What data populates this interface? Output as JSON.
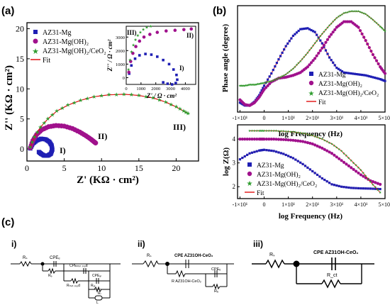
{
  "panel_labels": {
    "a": "(a)",
    "b": "(b)",
    "c": "(c)"
  },
  "legend_a": [
    "AZ31-Mg",
    "AZ31-Mg(OH)₂",
    "AZ31-Mg(OH)₂/CeO₂",
    "Fit"
  ],
  "legend_b": [
    "AZ31-Mg",
    "AZ31-Mg(OH)₂",
    "AZ31-Mg(OH)₂/CeO₂",
    "Fit"
  ],
  "legend_c": [
    "AZ31-Mg",
    "AZ31-Mg(OH)₂",
    "AZ31-Mg(OH)₂/CeO₂",
    "Fit"
  ],
  "colors": {
    "mg": "#1f1fb4",
    "oh": "#a0118c",
    "ce": "#2e9c2e",
    "fit": "#e01010",
    "axis": "#000000"
  },
  "chart_data": [
    {
      "type": "scatter",
      "xlabel": "Z' (KΩ · cm²)",
      "ylabel": "Z'' (KΩ · cm²)",
      "xlim": [
        0,
        23
      ],
      "ylim": [
        -2,
        21
      ],
      "xticks": [
        "0",
        "5",
        "10",
        "15",
        "20"
      ],
      "yticks": [
        "0",
        "5",
        "10",
        "15",
        "20"
      ],
      "annotations": [
        "I)",
        "II)",
        "III)"
      ],
      "series": [
        {
          "name": "AZ31-Mg",
          "x": [
            0.45,
            0.8,
            1.3,
            1.9,
            2.5,
            3.0,
            3.3,
            3.4,
            3.2,
            2.8,
            2.3,
            1.9,
            1.6
          ],
          "y": [
            0.1,
            0.9,
            1.4,
            1.7,
            1.6,
            1.2,
            0.6,
            -0.1,
            -0.8,
            -1.1,
            -1.1,
            -0.8,
            -0.5
          ]
        },
        {
          "name": "AZ31-Mg(OH)₂",
          "x": [
            0.45,
            0.8,
            1.3,
            2.0,
            2.9,
            3.9,
            5.0,
            6.1,
            7.1,
            7.9,
            8.6,
            9.0,
            9.2
          ],
          "y": [
            0.2,
            1.4,
            2.4,
            3.2,
            3.7,
            3.9,
            3.8,
            3.4,
            2.8,
            2.2,
            1.6,
            1.2,
            1.0
          ]
        },
        {
          "name": "AZ31-Mg(OH)₂/CeO₂",
          "x": [
            0.45,
            1.0,
            1.8,
            2.8,
            4.0,
            5.5,
            7.2,
            9.0,
            11.0,
            13.0,
            15.0,
            16.9,
            18.6,
            20.0,
            21.0,
            21.6
          ],
          "y": [
            0.3,
            2.0,
            3.6,
            5.0,
            6.3,
            7.3,
            8.1,
            8.7,
            9.0,
            9.1,
            8.9,
            8.5,
            7.8,
            7.0,
            6.3,
            5.9
          ]
        }
      ],
      "fit_label": "Fit"
    },
    {
      "type": "scatter",
      "inset": true,
      "xlabel": "Z' / Ω · cm²",
      "ylabel": "Z'' / Ω · cm²",
      "xlim": [
        0,
        4700
      ],
      "ylim": [
        -500,
        3800
      ],
      "xticks": [
        "0",
        "1000",
        "2000",
        "3000",
        "4000"
      ],
      "yticks": [
        "0",
        "1000",
        "2000",
        "3000"
      ],
      "annotations": [
        "I)",
        "II)",
        "III)"
      ],
      "series": [
        {
          "name": "AZ31-Mg",
          "x": [
            200,
            350,
            600,
            900,
            1300,
            1700,
            2100,
            2500,
            2900,
            3200,
            3400,
            3450,
            3350,
            3100,
            2800,
            2500
          ],
          "y": [
            300,
            900,
            1400,
            1650,
            1750,
            1700,
            1550,
            1300,
            1000,
            600,
            200,
            -150,
            -400,
            -500,
            -450,
            -350
          ]
        },
        {
          "name": "AZ31-Mg(OH)₂",
          "x": [
            180,
            300,
            450,
            650,
            900,
            1200,
            1600,
            2100,
            2700,
            3300,
            3900,
            4400
          ],
          "y": [
            400,
            1200,
            1800,
            2300,
            2700,
            3000,
            3200,
            3350,
            3450,
            3500,
            3550,
            3600
          ]
        },
        {
          "name": "AZ31-Mg(OH)₂/CeO₂",
          "x": [
            150,
            250,
            350,
            480,
            620,
            780,
            950,
            1150,
            1380,
            1650
          ],
          "y": [
            600,
            1300,
            1900,
            2400,
            2800,
            3100,
            3350,
            3550,
            3700,
            3800
          ]
        }
      ]
    },
    {
      "type": "line",
      "xlabel": "log Frequency (Hz)",
      "ylabel": "Phase angle (degree)",
      "xtick_labels": [
        "-1×10¹",
        "0",
        "1×10¹",
        "2×10¹",
        "3×10¹",
        "4×10¹",
        "5×10¹"
      ],
      "xlim": [
        -1.1,
        5.0
      ],
      "ylim": [
        -28,
        85
      ],
      "series": [
        {
          "name": "AZ31-Mg",
          "x": [
            -1.0,
            -0.8,
            -0.6,
            -0.4,
            -0.2,
            0.0,
            0.3,
            0.6,
            0.9,
            1.2,
            1.5,
            1.8,
            2.1,
            2.4,
            2.7,
            3.0,
            3.3,
            3.6,
            3.9,
            4.2,
            4.5,
            4.8,
            5.0
          ],
          "y": [
            -18,
            -21,
            -21,
            -17,
            -10,
            0,
            13,
            28,
            42,
            53,
            60,
            61,
            57,
            45,
            30,
            19,
            14,
            13,
            12,
            11,
            9,
            7,
            5
          ]
        },
        {
          "name": "AZ31-Mg(OH)₂",
          "x": [
            -1.0,
            -0.8,
            -0.6,
            -0.4,
            -0.2,
            0.0,
            0.3,
            0.6,
            0.9,
            1.2,
            1.5,
            1.8,
            2.1,
            2.4,
            2.7,
            3.0,
            3.3,
            3.6,
            3.9,
            4.2,
            4.5,
            4.8,
            5.0
          ],
          "y": [
            -15,
            -20,
            -21,
            -18,
            -12,
            -4,
            4,
            8,
            9,
            11,
            14,
            20,
            29,
            40,
            52,
            62,
            68,
            68,
            62,
            48,
            33,
            20,
            13
          ]
        },
        {
          "name": "AZ31-Mg(OH)₂/CeO₂",
          "x": [
            -1.0,
            -0.8,
            -0.6,
            -0.4,
            -0.2,
            0.0,
            0.3,
            0.6,
            0.9,
            1.2,
            1.5,
            1.8,
            2.1,
            2.4,
            2.7,
            3.0,
            3.3,
            3.6,
            3.9,
            4.2,
            4.5,
            4.8,
            5.0
          ],
          "y": [
            0,
            0,
            1,
            1,
            2,
            3,
            5,
            8,
            12,
            18,
            26,
            35,
            45,
            55,
            64,
            72,
            77,
            79,
            79,
            76,
            70,
            63,
            58
          ]
        }
      ],
      "fit_label": "Fit"
    },
    {
      "type": "line",
      "xlabel": "log Frequency (Hz)",
      "ylabel": "log Z(Ω)",
      "xtick_labels": [
        "-1×10¹",
        "0",
        "1×10¹",
        "2×10¹",
        "3×10¹",
        "4×10¹",
        "5×10¹"
      ],
      "yticks": [
        "2",
        "3",
        "4"
      ],
      "xlim": [
        -1.1,
        5.0
      ],
      "ylim": [
        1.5,
        4.6
      ],
      "series": [
        {
          "name": "AZ31-Mg",
          "x": [
            -1.0,
            -0.6,
            -0.2,
            0.0,
            0.4,
            0.8,
            1.2,
            1.6,
            2.0,
            2.4,
            2.8,
            3.2,
            3.6,
            4.0,
            4.4,
            4.8
          ],
          "y": [
            3.15,
            3.4,
            3.52,
            3.55,
            3.5,
            3.38,
            3.2,
            2.95,
            2.65,
            2.35,
            2.1,
            2.0,
            1.95,
            1.93,
            1.92,
            1.9
          ]
        },
        {
          "name": "AZ31-Mg(OH)₂",
          "x": [
            -1.0,
            -0.6,
            -0.2,
            0.0,
            0.4,
            0.8,
            1.2,
            1.6,
            2.0,
            2.4,
            2.8,
            3.2,
            3.6,
            4.0,
            4.4,
            4.8
          ],
          "y": [
            4.0,
            4.0,
            4.0,
            4.0,
            4.0,
            3.98,
            3.95,
            3.9,
            3.8,
            3.62,
            3.4,
            3.1,
            2.8,
            2.5,
            2.25,
            2.1
          ]
        },
        {
          "name": "AZ31-Mg(OH)₂/CeO₂",
          "x": [
            -0.6,
            -0.2,
            0.0,
            0.4,
            0.8,
            1.2,
            1.6,
            2.0,
            2.4,
            2.8,
            3.2,
            3.6,
            4.0,
            4.4,
            4.8
          ],
          "y": [
            4.35,
            4.35,
            4.35,
            4.35,
            4.33,
            4.3,
            4.25,
            4.15,
            4.0,
            3.8,
            3.5,
            3.1,
            2.7,
            2.2,
            1.75
          ]
        }
      ],
      "fit_label": "Fit"
    }
  ],
  "circuits": {
    "i": {
      "label": "i)",
      "components": [
        "Rₛ",
        "CPEₑ",
        "Rₑ",
        "CPEₘᵢₙ ₚᵣₒd",
        "Rₘᵢₙ ₚᵣₒd",
        "CPEₐₗ",
        "Rₐₗ",
        "Rₗ",
        "L"
      ]
    },
    "ii": {
      "label": "ii)",
      "components": [
        "Rₛ",
        "CPE AZ31OH-CeO₂",
        "R AZ31OH-CeO₂",
        "CPEₑ",
        "Rₑ"
      ]
    },
    "iii": {
      "label": "iii)",
      "components": [
        "Rₛ",
        "CPE AZ31OH-CeO₂",
        "R_ct"
      ]
    }
  }
}
